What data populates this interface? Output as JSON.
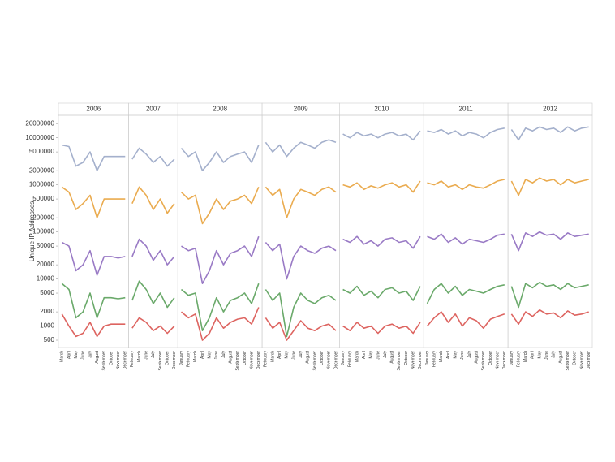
{
  "chart_data": {
    "type": "line",
    "ylabel": "Unique IP Addresses",
    "log_scale": true,
    "ylim": [
      350,
      30000000
    ],
    "yticks": [
      500,
      1000,
      2000,
      5000,
      10000,
      20000,
      50000,
      100000,
      200000,
      500000,
      1000000,
      2000000,
      5000000,
      10000000,
      20000000
    ],
    "facets": [
      {
        "title": "2006",
        "categories": [
          "March",
          "April",
          "May",
          "June",
          "July",
          "August",
          "September",
          "October",
          "November",
          "December"
        ],
        "series": [
          {
            "color": "#9aa7c7",
            "values": [
              7000000,
              6500000,
              2500000,
              3000000,
              5000000,
              2000000,
              4000000,
              4000000,
              4000000,
              4000000
            ]
          },
          {
            "color": "#e8a23c",
            "values": [
              900000,
              700000,
              300000,
              400000,
              600000,
              200000,
              500000,
              500000,
              500000,
              500000
            ]
          },
          {
            "color": "#8e6bbf",
            "values": [
              60000,
              50000,
              15000,
              20000,
              40000,
              12000,
              30000,
              30000,
              28000,
              30000
            ]
          },
          {
            "color": "#5aa05a",
            "values": [
              8000,
              6000,
              1500,
              2000,
              5000,
              1500,
              4000,
              4000,
              3800,
              4000
            ]
          },
          {
            "color": "#d9534f",
            "values": [
              1800,
              1000,
              600,
              700,
              1200,
              600,
              1000,
              1100,
              1100,
              1100
            ]
          }
        ]
      },
      {
        "title": "2007",
        "categories": [
          "February",
          "March",
          "June",
          "July",
          "September",
          "October",
          "December"
        ],
        "series": [
          {
            "color": "#9aa7c7",
            "values": [
              3500000,
              6000000,
              4500000,
              3000000,
              4000000,
              2500000,
              3500000
            ]
          },
          {
            "color": "#e8a23c",
            "values": [
              400000,
              900000,
              600000,
              300000,
              500000,
              250000,
              400000
            ]
          },
          {
            "color": "#8e6bbf",
            "values": [
              30000,
              70000,
              50000,
              25000,
              40000,
              20000,
              30000
            ]
          },
          {
            "color": "#5aa05a",
            "values": [
              3500,
              9000,
              6000,
              3000,
              5000,
              2500,
              4000
            ]
          },
          {
            "color": "#d9534f",
            "values": [
              900,
              1500,
              1200,
              800,
              1000,
              700,
              1000
            ]
          }
        ]
      },
      {
        "title": "2008",
        "categories": [
          "January",
          "February",
          "March",
          "April",
          "May",
          "June",
          "July",
          "August",
          "September",
          "October",
          "November",
          "December"
        ],
        "series": [
          {
            "color": "#9aa7c7",
            "values": [
              6000000,
              4000000,
              5000000,
              2000000,
              3000000,
              5000000,
              3000000,
              4000000,
              4500000,
              5000000,
              3000000,
              7000000
            ]
          },
          {
            "color": "#e8a23c",
            "values": [
              700000,
              500000,
              600000,
              150000,
              250000,
              500000,
              300000,
              450000,
              500000,
              600000,
              400000,
              900000
            ]
          },
          {
            "color": "#8e6bbf",
            "values": [
              50000,
              40000,
              45000,
              8000,
              15000,
              40000,
              20000,
              35000,
              40000,
              50000,
              30000,
              80000
            ]
          },
          {
            "color": "#5aa05a",
            "values": [
              6000,
              4500,
              5000,
              800,
              1500,
              4000,
              2000,
              3500,
              4000,
              5000,
              3000,
              8000
            ]
          },
          {
            "color": "#d9534f",
            "values": [
              2000,
              1500,
              1800,
              500,
              700,
              1500,
              900,
              1200,
              1400,
              1500,
              1100,
              2500
            ]
          }
        ]
      },
      {
        "title": "2009",
        "categories": [
          "February",
          "March",
          "April",
          "May",
          "June",
          "July",
          "August",
          "September",
          "October",
          "November",
          "December"
        ],
        "series": [
          {
            "color": "#9aa7c7",
            "values": [
              8000000,
              5000000,
              7000000,
              4000000,
              6000000,
              8000000,
              7000000,
              6000000,
              8000000,
              9000000,
              8000000
            ]
          },
          {
            "color": "#e8a23c",
            "values": [
              900000,
              600000,
              800000,
              200000,
              500000,
              800000,
              700000,
              600000,
              800000,
              900000,
              700000
            ]
          },
          {
            "color": "#8e6bbf",
            "values": [
              60000,
              40000,
              55000,
              10000,
              30000,
              50000,
              40000,
              35000,
              45000,
              50000,
              40000
            ]
          },
          {
            "color": "#5aa05a",
            "values": [
              6000,
              3500,
              5000,
              600,
              2500,
              5000,
              3500,
              3000,
              4000,
              4500,
              3500
            ]
          },
          {
            "color": "#d9534f",
            "values": [
              1500,
              900,
              1200,
              500,
              800,
              1300,
              900,
              800,
              1000,
              1100,
              800
            ]
          }
        ]
      },
      {
        "title": "2010",
        "categories": [
          "January",
          "February",
          "March",
          "April",
          "May",
          "June",
          "July",
          "August",
          "September",
          "October",
          "November",
          "December"
        ],
        "series": [
          {
            "color": "#9aa7c7",
            "values": [
              12000000,
              10000000,
              13000000,
              11000000,
              12000000,
              10000000,
              12000000,
              13000000,
              11000000,
              12000000,
              9000000,
              14000000
            ]
          },
          {
            "color": "#e8a23c",
            "values": [
              1000000,
              900000,
              1100000,
              800000,
              950000,
              850000,
              1000000,
              1100000,
              900000,
              1000000,
              700000,
              1200000
            ]
          },
          {
            "color": "#8e6bbf",
            "values": [
              70000,
              60000,
              80000,
              55000,
              65000,
              50000,
              70000,
              75000,
              60000,
              65000,
              45000,
              80000
            ]
          },
          {
            "color": "#5aa05a",
            "values": [
              6000,
              5000,
              7000,
              4500,
              5500,
              4000,
              6000,
              6500,
              5000,
              5500,
              3500,
              7000
            ]
          },
          {
            "color": "#d9534f",
            "values": [
              1000,
              800,
              1200,
              900,
              1000,
              700,
              1000,
              1100,
              900,
              1000,
              700,
              1200
            ]
          }
        ]
      },
      {
        "title": "2011",
        "categories": [
          "January",
          "February",
          "March",
          "April",
          "May",
          "June",
          "July",
          "August",
          "September",
          "October",
          "November",
          "December"
        ],
        "series": [
          {
            "color": "#9aa7c7",
            "values": [
              14000000,
              13000000,
              15000000,
              12000000,
              14000000,
              11000000,
              13000000,
              12000000,
              10000000,
              13000000,
              15000000,
              16000000
            ]
          },
          {
            "color": "#e8a23c",
            "values": [
              1100000,
              1000000,
              1200000,
              900000,
              1000000,
              800000,
              1000000,
              900000,
              850000,
              1000000,
              1200000,
              1300000
            ]
          },
          {
            "color": "#8e6bbf",
            "values": [
              80000,
              70000,
              90000,
              60000,
              75000,
              55000,
              70000,
              65000,
              60000,
              70000,
              85000,
              90000
            ]
          },
          {
            "color": "#5aa05a",
            "values": [
              3000,
              6000,
              8000,
              5000,
              7000,
              4500,
              6000,
              5500,
              5000,
              6000,
              7000,
              7500
            ]
          },
          {
            "color": "#d9534f",
            "values": [
              1000,
              1500,
              2000,
              1200,
              1800,
              1000,
              1500,
              1300,
              900,
              1400,
              1600,
              1800
            ]
          }
        ]
      },
      {
        "title": "2012",
        "categories": [
          "January",
          "February",
          "March",
          "April",
          "May",
          "June",
          "July",
          "August",
          "September",
          "October",
          "November",
          "December"
        ],
        "series": [
          {
            "color": "#9aa7c7",
            "values": [
              15000000,
              9000000,
              16000000,
              14000000,
              17000000,
              15000000,
              16000000,
              13000000,
              17000000,
              14000000,
              16000000,
              17000000
            ]
          },
          {
            "color": "#e8a23c",
            "values": [
              1200000,
              600000,
              1300000,
              1100000,
              1400000,
              1200000,
              1300000,
              1000000,
              1300000,
              1100000,
              1200000,
              1300000
            ]
          },
          {
            "color": "#8e6bbf",
            "values": [
              90000,
              40000,
              95000,
              80000,
              100000,
              85000,
              90000,
              70000,
              95000,
              80000,
              85000,
              90000
            ]
          },
          {
            "color": "#5aa05a",
            "values": [
              7000,
              2500,
              8000,
              6500,
              8500,
              7000,
              7500,
              6000,
              8000,
              6500,
              7000,
              7500
            ]
          },
          {
            "color": "#d9534f",
            "values": [
              1800,
              1100,
              2000,
              1600,
              2200,
              1800,
              1900,
              1500,
              2100,
              1700,
              1800,
              2000
            ]
          }
        ]
      }
    ]
  }
}
